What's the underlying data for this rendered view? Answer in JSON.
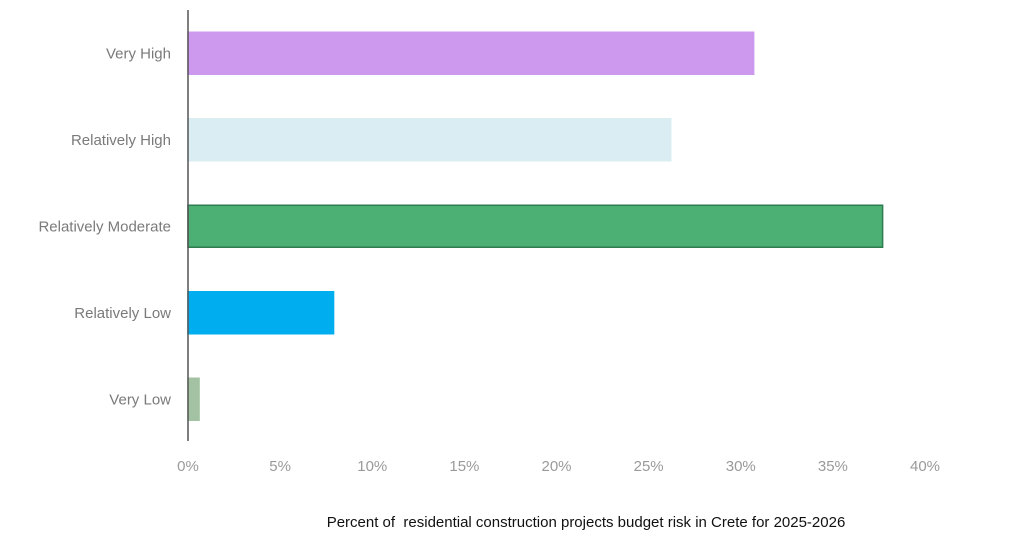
{
  "chart_data": {
    "type": "bar",
    "orientation": "horizontal",
    "categories": [
      "Very High",
      "Relatively High",
      "Relatively Moderate",
      "Relatively Low",
      "Very Low"
    ],
    "values": [
      30.7,
      26.2,
      37.7,
      7.9,
      0.6
    ],
    "unit": "%",
    "colors": [
      "#cc99ee",
      "#daedf3",
      "#4caf74",
      "#00aeef",
      "#a3c2a3"
    ],
    "bar_borders": [
      "#cc99ee",
      "#daedf3",
      "#2e7d4f",
      "#00aeef",
      "#a3c2a3"
    ],
    "xlim": [
      0,
      40
    ],
    "xticks": [
      {
        "value": 0,
        "label": "0%"
      },
      {
        "value": 5,
        "label": "5%"
      },
      {
        "value": 10,
        "label": "10%"
      },
      {
        "value": 15,
        "label": "15%"
      },
      {
        "value": 20,
        "label": "20%"
      },
      {
        "value": 25,
        "label": "25%"
      },
      {
        "value": 30,
        "label": "30%"
      },
      {
        "value": 35,
        "label": "35%"
      },
      {
        "value": 40,
        "label": "40%"
      }
    ],
    "xlabel": "Percent of  residential construction projects budget risk in Crete for 2025-2026",
    "ylabel": "",
    "grid": false,
    "legend": "none"
  }
}
